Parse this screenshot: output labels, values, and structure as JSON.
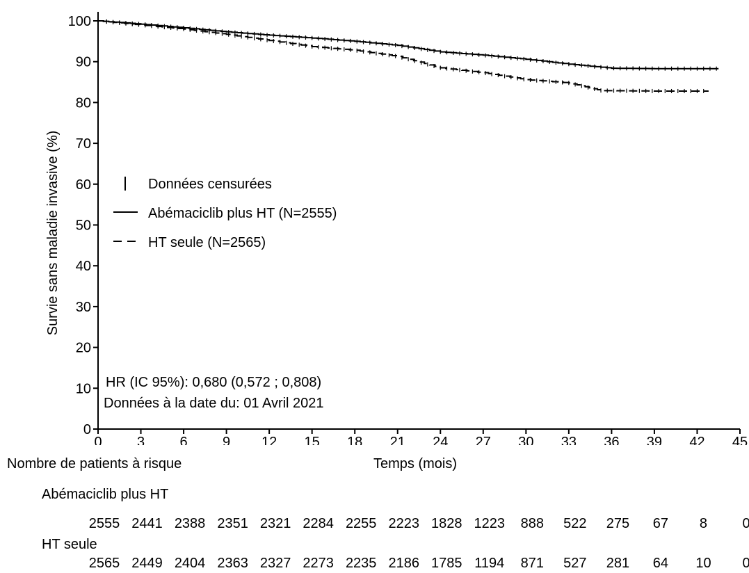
{
  "chart_data": {
    "type": "line",
    "title": "",
    "xlabel": "Temps (mois)",
    "ylabel": "Survie sans maladie invasive (%)",
    "xlim": [
      0,
      45
    ],
    "ylim": [
      0,
      100
    ],
    "xticks": [
      0,
      3,
      6,
      9,
      12,
      15,
      18,
      21,
      24,
      27,
      30,
      33,
      36,
      39,
      42,
      45
    ],
    "yticks": [
      0,
      10,
      20,
      30,
      40,
      50,
      60,
      70,
      80,
      90,
      100
    ],
    "grid": false,
    "legend": {
      "position": "center-left",
      "censored_label": "Données censurées",
      "entries": [
        {
          "label": "Abémaciclib plus HT (N=2555)",
          "style": "solid"
        },
        {
          "label": "HT seule (N=2565)",
          "style": "dashed"
        }
      ]
    },
    "annotations": [
      "HR (IC 95%): 0,680 (0,572 ; 0,808)",
      "Données à la date du: 01 Avril 2021"
    ],
    "series": [
      {
        "style": "solid",
        "x": [
          0,
          3,
          6,
          9,
          12,
          15,
          18,
          21,
          24,
          27,
          30,
          33,
          36,
          39,
          42,
          43.5
        ],
        "y": [
          100,
          99.2,
          98.3,
          97.3,
          96.5,
          95.8,
          95.0,
          94.0,
          92.4,
          91.6,
          90.6,
          89.4,
          88.4,
          88.3,
          88.3,
          88.3
        ]
      },
      {
        "style": "dashed",
        "x": [
          0,
          3,
          6,
          9,
          12,
          15,
          18,
          21,
          24,
          27,
          30,
          33,
          35.3,
          36,
          39,
          42,
          42.8
        ],
        "y": [
          100,
          99.0,
          98.0,
          96.7,
          95.2,
          93.7,
          92.8,
          91.3,
          88.5,
          87.3,
          85.6,
          84.8,
          82.9,
          82.9,
          82.8,
          82.8,
          82.8
        ]
      }
    ]
  },
  "risk_table": {
    "title": "Nombre de patients à risque",
    "rows": [
      {
        "label": "Abémaciclib plus HT",
        "values": [
          "2555",
          "2441",
          "2388",
          "2351",
          "2321",
          "2284",
          "2255",
          "2223",
          "1828",
          "1223",
          "888",
          "522",
          "275",
          "67",
          "8",
          "0"
        ]
      },
      {
        "label": "HT seule",
        "values": [
          "2565",
          "2449",
          "2404",
          "2363",
          "2327",
          "2273",
          "2235",
          "2186",
          "1785",
          "1194",
          "871",
          "527",
          "281",
          "64",
          "10",
          "0"
        ]
      }
    ]
  }
}
